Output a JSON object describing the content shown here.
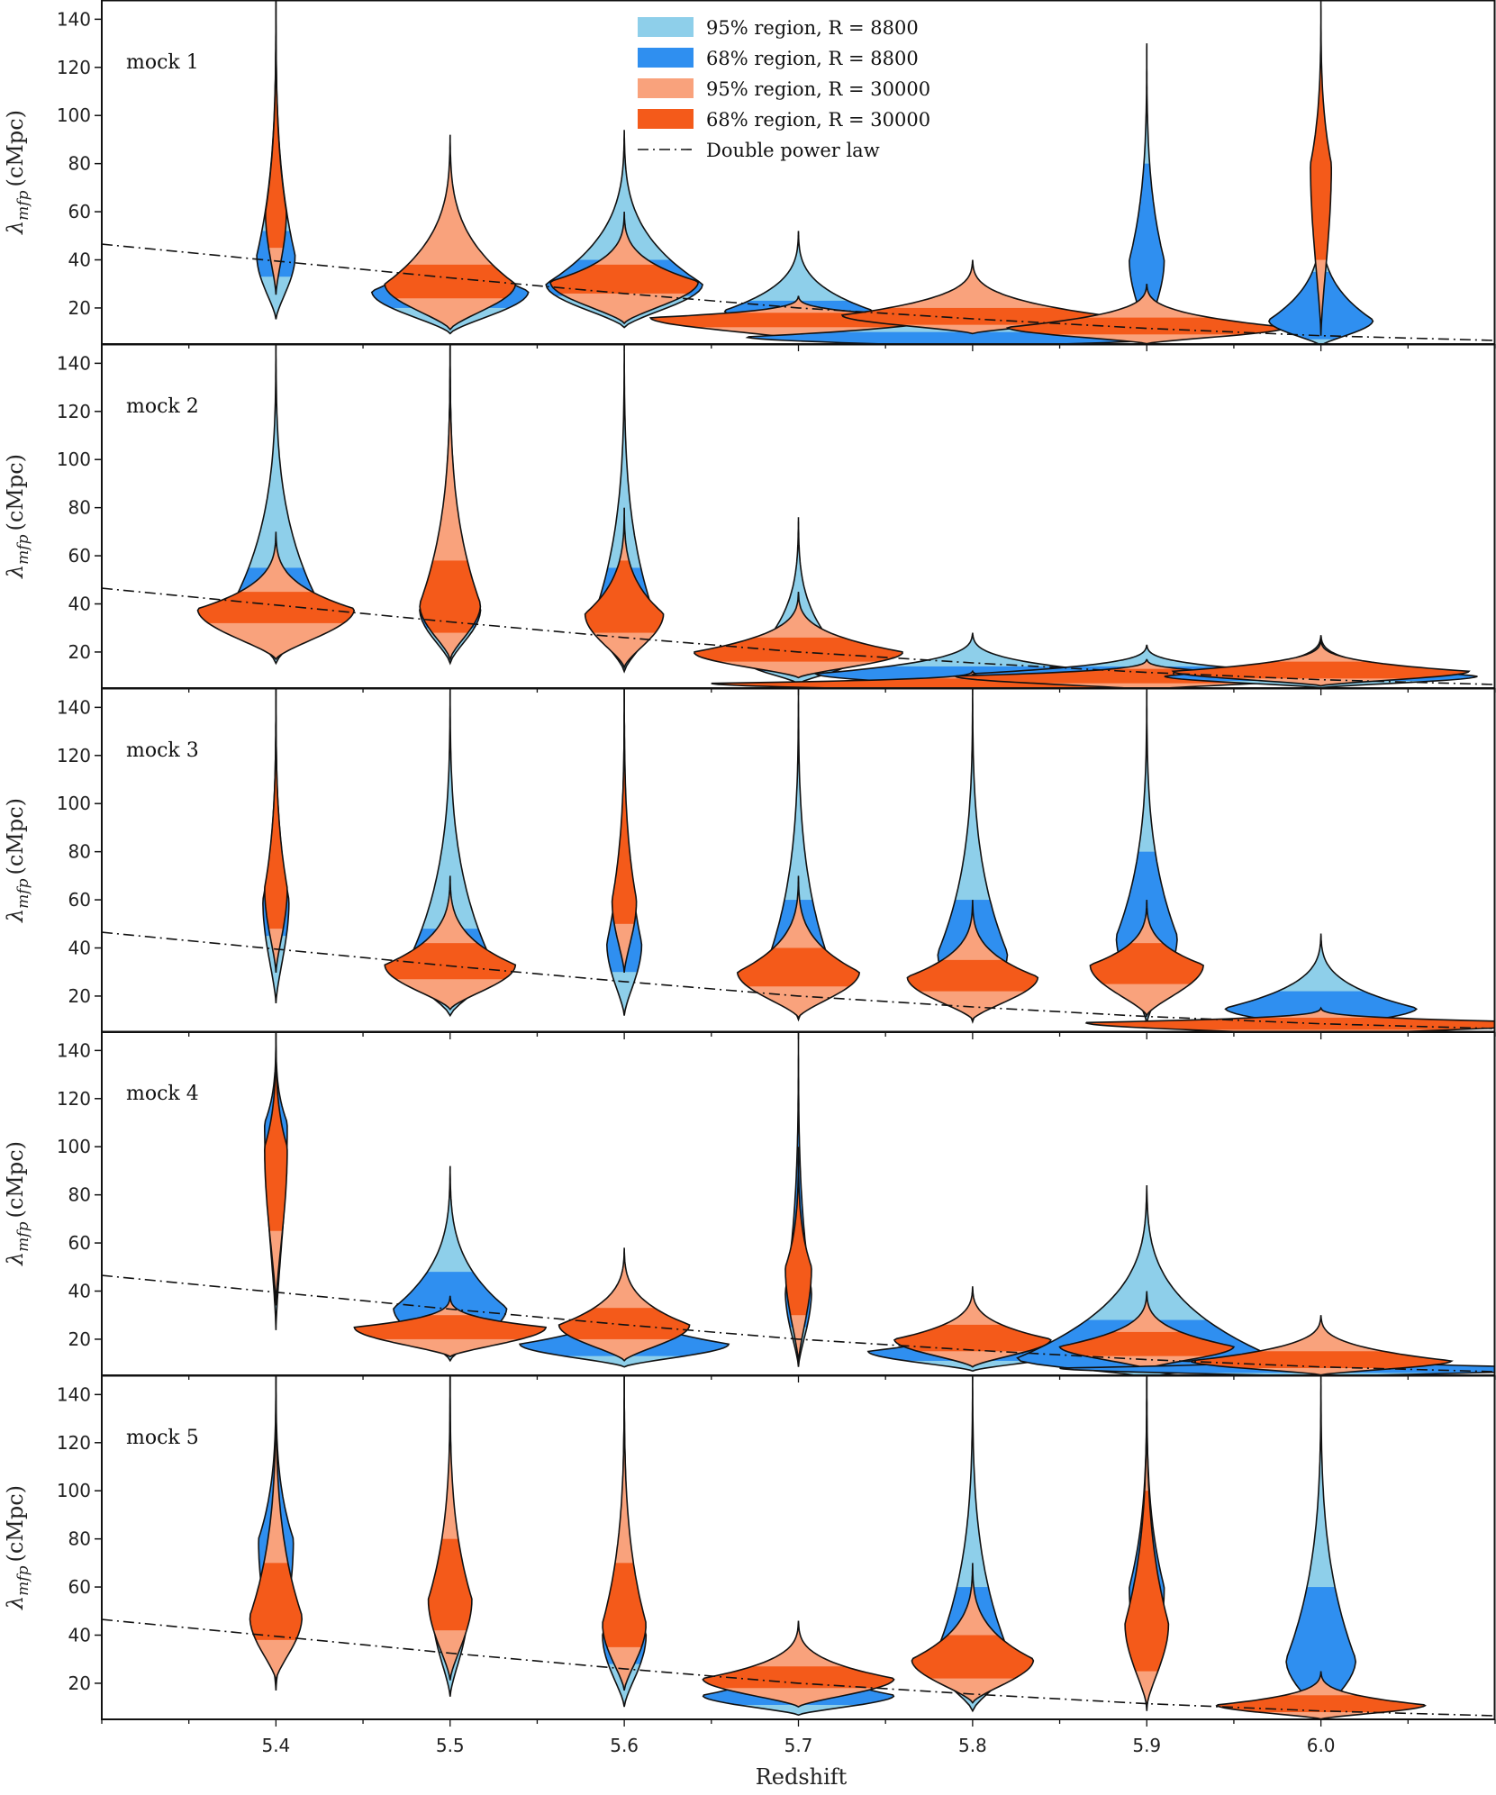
{
  "chart_data": {
    "type": "violin",
    "xlabel": "Redshift",
    "ylabel": "λmfp (cMpc)",
    "ylabel_symbol": "λ",
    "ylabel_subscript": "mfp",
    "ylabel_unit": "(cMpc)",
    "xlim": [
      5.3,
      6.1
    ],
    "ylim": [
      5,
      148
    ],
    "x_ticks": [
      "5.4",
      "5.5",
      "5.6",
      "5.7",
      "5.8",
      "5.9",
      "6.0"
    ],
    "x_tick_values": [
      5.4,
      5.5,
      5.6,
      5.7,
      5.8,
      5.9,
      6.0
    ],
    "y_ticks": [
      "20",
      "40",
      "60",
      "80",
      "100",
      "120",
      "140"
    ],
    "y_tick_values": [
      20,
      40,
      60,
      80,
      100,
      120,
      140
    ],
    "colors": {
      "r8800_95": "#8ecfea",
      "r8800_68": "#2f8ff0",
      "r30000_95": "#f9a27c",
      "r30000_68": "#f45a1a",
      "outline": "#111111"
    },
    "legend": [
      {
        "label": "95% region, R = 8800",
        "kind": "patch",
        "color": "#8ecfea"
      },
      {
        "label": "68% region, R = 8800",
        "kind": "patch",
        "color": "#2f8ff0"
      },
      {
        "label": "95% region, R = 30000",
        "kind": "patch",
        "color": "#f9a27c"
      },
      {
        "label": "68% region, R = 30000",
        "kind": "patch",
        "color": "#f45a1a"
      },
      {
        "label": "Double power law",
        "kind": "dashdot"
      }
    ],
    "reference_curve": {
      "name": "Double power law",
      "x": [
        5.3,
        5.4,
        5.5,
        5.6,
        5.7,
        5.8,
        5.9,
        6.0,
        6.1
      ],
      "y": [
        46.5,
        39.5,
        32.5,
        26.0,
        20.0,
        15.5,
        11.5,
        8.5,
        6.5
      ]
    },
    "panels": [
      {
        "label": "mock 1",
        "violins": [
          {
            "z": 5.4,
            "r8800": {
              "median": 42,
              "lo95": 18,
              "hi95": 148,
              "lo68": 33,
              "hi68": 52,
              "width": 0.022
            },
            "r30000": {
              "median": 60,
              "lo95": 30,
              "hi95": 148,
              "lo68": 45,
              "hi68": 148,
              "width": 0.012
            }
          },
          {
            "z": 5.5,
            "r8800": {
              "median": 27,
              "lo95": 11,
              "hi95": 70,
              "lo68": 20,
              "hi68": 33,
              "width": 0.09
            },
            "r30000": {
              "median": 30,
              "lo95": 13,
              "hi95": 92,
              "lo68": 24,
              "hi68": 38,
              "width": 0.075
            }
          },
          {
            "z": 5.6,
            "r8800": {
              "median": 30,
              "lo95": 14,
              "hi95": 94,
              "lo68": 25,
              "hi68": 40,
              "width": 0.09
            },
            "r30000": {
              "median": 31,
              "lo95": 16,
              "hi95": 60,
              "lo68": 26,
              "hi68": 38,
              "width": 0.085
            }
          },
          {
            "z": 5.7,
            "r8800": {
              "median": 19,
              "lo95": 12,
              "hi95": 52,
              "lo68": 15,
              "hi68": 23,
              "width": 0.085
            },
            "r30000": {
              "median": 16,
              "lo95": 8,
              "hi95": 25,
              "lo68": 12,
              "hi68": 18,
              "width": 0.17
            }
          },
          {
            "z": 5.8,
            "r8800": {
              "median": 8,
              "lo95": 4,
              "hi95": 22,
              "lo68": 5,
              "hi68": 10,
              "width": 0.26
            },
            "r30000": {
              "median": 17,
              "lo95": 11,
              "hi95": 40,
              "lo68": 13,
              "hi68": 20,
              "width": 0.15
            }
          },
          {
            "z": 5.9,
            "r8800": {
              "median": 40,
              "lo95": 8,
              "hi95": 130,
              "lo68": 20,
              "hi68": 80,
              "width": 0.02
            },
            "r30000": {
              "median": 12,
              "lo95": 6,
              "hi95": 30,
              "lo68": 9,
              "hi68": 16,
              "width": 0.16
            }
          },
          {
            "z": 6.0,
            "r8800": {
              "median": 15,
              "lo95": 5,
              "hi95": 60,
              "lo68": 7,
              "hi68": 35,
              "width": 0.06
            },
            "r30000": {
              "median": 80,
              "lo95": 10,
              "hi95": 148,
              "lo68": 40,
              "hi68": 140,
              "width": 0.012
            }
          }
        ]
      },
      {
        "label": "mock 2",
        "violins": [
          {
            "z": 5.4,
            "r8800": {
              "median": 40,
              "lo95": 18,
              "hi95": 148,
              "lo68": 32,
              "hi68": 55,
              "width": 0.05
            },
            "r30000": {
              "median": 38,
              "lo95": 20,
              "hi95": 70,
              "lo68": 32,
              "hi68": 45,
              "width": 0.09
            }
          },
          {
            "z": 5.5,
            "r8800": {
              "median": 38,
              "lo95": 18,
              "hi95": 148,
              "lo68": 30,
              "hi68": 58,
              "width": 0.035
            },
            "r30000": {
              "median": 40,
              "lo95": 20,
              "hi95": 148,
              "lo68": 28,
              "hi68": 58,
              "width": 0.035
            }
          },
          {
            "z": 5.6,
            "r8800": {
              "median": 35,
              "lo95": 14,
              "hi95": 148,
              "lo68": 26,
              "hi68": 55,
              "width": 0.035
            },
            "r30000": {
              "median": 36,
              "lo95": 16,
              "hi95": 80,
              "lo68": 28,
              "hi68": 58,
              "width": 0.045
            }
          },
          {
            "z": 5.7,
            "r8800": {
              "median": 16,
              "lo95": 8,
              "hi95": 76,
              "lo68": 12,
              "hi68": 24,
              "width": 0.06
            },
            "r30000": {
              "median": 20,
              "lo95": 11,
              "hi95": 45,
              "lo68": 16,
              "hi68": 26,
              "width": 0.12
            }
          },
          {
            "z": 5.8,
            "r8800": {
              "median": 11,
              "lo95": 6,
              "hi95": 28,
              "lo68": 8,
              "hi68": 14,
              "width": 0.18
            },
            "r30000": {
              "median": 7,
              "lo95": 4,
              "hi95": 12,
              "lo68": 5,
              "hi68": 9,
              "width": 0.3
            }
          },
          {
            "z": 5.9,
            "r8800": {
              "median": 11,
              "lo95": 6,
              "hi95": 23,
              "lo68": 8,
              "hi68": 14,
              "width": 0.2
            },
            "r30000": {
              "median": 10,
              "lo95": 5,
              "hi95": 17,
              "lo68": 7,
              "hi68": 13,
              "width": 0.22
            }
          },
          {
            "z": 6.0,
            "r8800": {
              "median": 10,
              "lo95": 6,
              "hi95": 27,
              "lo68": 8,
              "hi68": 13,
              "width": 0.18
            },
            "r30000": {
              "median": 12,
              "lo95": 7,
              "hi95": 25,
              "lo68": 9,
              "hi68": 16,
              "width": 0.17
            }
          }
        ]
      },
      {
        "label": "mock 3",
        "violins": [
          {
            "z": 5.4,
            "r8800": {
              "median": 60,
              "lo95": 20,
              "hi95": 148,
              "lo68": 45,
              "hi68": 120,
              "width": 0.015
            },
            "r30000": {
              "median": 65,
              "lo95": 35,
              "hi95": 148,
              "lo68": 48,
              "hi68": 120,
              "width": 0.013
            }
          },
          {
            "z": 5.5,
            "r8800": {
              "median": 33,
              "lo95": 14,
              "hi95": 148,
              "lo68": 25,
              "hi68": 48,
              "width": 0.05
            },
            "r30000": {
              "median": 33,
              "lo95": 17,
              "hi95": 70,
              "lo68": 27,
              "hi68": 42,
              "width": 0.075
            }
          },
          {
            "z": 5.6,
            "r8800": {
              "median": 42,
              "lo95": 14,
              "hi95": 148,
              "lo68": 30,
              "hi68": 70,
              "width": 0.02
            },
            "r30000": {
              "median": 60,
              "lo95": 35,
              "hi95": 148,
              "lo68": 50,
              "hi68": 140,
              "width": 0.014
            }
          },
          {
            "z": 5.7,
            "r8800": {
              "median": 35,
              "lo95": 12,
              "hi95": 148,
              "lo68": 24,
              "hi68": 60,
              "width": 0.035
            },
            "r30000": {
              "median": 30,
              "lo95": 13,
              "hi95": 70,
              "lo68": 24,
              "hi68": 40,
              "width": 0.07
            }
          },
          {
            "z": 5.8,
            "r8800": {
              "median": 38,
              "lo95": 11,
              "hi95": 148,
              "lo68": 25,
              "hi68": 60,
              "width": 0.04
            },
            "r30000": {
              "median": 28,
              "lo95": 12,
              "hi95": 60,
              "lo68": 22,
              "hi68": 35,
              "width": 0.075
            }
          },
          {
            "z": 5.9,
            "r8800": {
              "median": 45,
              "lo95": 10,
              "hi95": 148,
              "lo68": 30,
              "hi68": 80,
              "width": 0.035
            },
            "r30000": {
              "median": 33,
              "lo95": 14,
              "hi95": 60,
              "lo68": 25,
              "hi68": 42,
              "width": 0.065
            }
          },
          {
            "z": 6.0,
            "r8800": {
              "median": 15,
              "lo95": 7,
              "hi95": 46,
              "lo68": 10,
              "hi68": 22,
              "width": 0.11
            },
            "r30000": {
              "median": 9,
              "lo95": 4,
              "hi95": 15,
              "lo68": 6,
              "hi68": 11,
              "width": 0.27
            }
          }
        ]
      },
      {
        "label": "mock 4",
        "violins": [
          {
            "z": 5.4,
            "r8800": {
              "median": 110,
              "lo95": 28,
              "hi95": 148,
              "lo68": 70,
              "hi68": 148,
              "width": 0.013
            },
            "r30000": {
              "median": 100,
              "lo95": 40,
              "hi95": 148,
              "lo68": 65,
              "hi68": 138,
              "width": 0.013
            }
          },
          {
            "z": 5.5,
            "r8800": {
              "median": 33,
              "lo95": 13,
              "hi95": 92,
              "lo68": 25,
              "hi68": 48,
              "width": 0.065
            },
            "r30000": {
              "median": 25,
              "lo95": 15,
              "hi95": 38,
              "lo68": 20,
              "hi68": 30,
              "width": 0.11
            }
          },
          {
            "z": 5.6,
            "r8800": {
              "median": 18,
              "lo95": 10,
              "hi95": 40,
              "lo68": 13,
              "hi68": 22,
              "width": 0.12
            },
            "r30000": {
              "median": 26,
              "lo95": 13,
              "hi95": 58,
              "lo68": 20,
              "hi68": 33,
              "width": 0.075
            }
          },
          {
            "z": 5.7,
            "r8800": {
              "median": 40,
              "lo95": 10,
              "hi95": 148,
              "lo68": 25,
              "hi68": 110,
              "width": 0.015
            },
            "r30000": {
              "median": 50,
              "lo95": 12,
              "hi95": 100,
              "lo68": 30,
              "hi68": 90,
              "width": 0.015
            }
          },
          {
            "z": 5.8,
            "r8800": {
              "median": 15,
              "lo95": 8,
              "hi95": 30,
              "lo68": 11,
              "hi68": 18,
              "width": 0.12
            },
            "r30000": {
              "median": 20,
              "lo95": 10,
              "hi95": 42,
              "lo68": 15,
              "hi68": 26,
              "width": 0.09
            }
          },
          {
            "z": 5.9,
            "r8800": {
              "median": 12,
              "lo95": 5,
              "hi95": 84,
              "lo68": 8,
              "hi68": 28,
              "width": 0.15
            },
            "r30000": {
              "median": 17,
              "lo95": 9,
              "hi95": 40,
              "lo68": 13,
              "hi68": 23,
              "width": 0.1
            }
          },
          {
            "z": 6.0,
            "r8800": {
              "median": 8,
              "lo95": 5,
              "hi95": 14,
              "lo68": 6,
              "hi68": 10,
              "width": 0.3
            },
            "r30000": {
              "median": 11,
              "lo95": 6,
              "hi95": 30,
              "lo68": 8,
              "hi68": 15,
              "width": 0.15
            }
          }
        ]
      },
      {
        "label": "mock 5",
        "violins": [
          {
            "z": 5.4,
            "r8800": {
              "median": 80,
              "lo95": 20,
              "hi95": 148,
              "lo68": 40,
              "hi68": 148,
              "width": 0.02
            },
            "r30000": {
              "median": 48,
              "lo95": 25,
              "hi95": 148,
              "lo68": 38,
              "hi68": 70,
              "width": 0.03
            }
          },
          {
            "z": 5.5,
            "r8800": {
              "median": 50,
              "lo95": 17,
              "hi95": 148,
              "lo68": 40,
              "hi68": 80,
              "width": 0.02
            },
            "r30000": {
              "median": 55,
              "lo95": 25,
              "hi95": 148,
              "lo68": 42,
              "hi68": 80,
              "width": 0.025
            }
          },
          {
            "z": 5.6,
            "r8800": {
              "median": 40,
              "lo95": 12,
              "hi95": 148,
              "lo68": 28,
              "hi68": 80,
              "width": 0.025
            },
            "r30000": {
              "median": 45,
              "lo95": 20,
              "hi95": 148,
              "lo68": 35,
              "hi68": 70,
              "width": 0.025
            }
          },
          {
            "z": 5.7,
            "r8800": {
              "median": 15,
              "lo95": 8,
              "hi95": 40,
              "lo68": 11,
              "hi68": 19,
              "width": 0.11
            },
            "r30000": {
              "median": 22,
              "lo95": 12,
              "hi95": 46,
              "lo68": 18,
              "hi68": 27,
              "width": 0.11
            }
          },
          {
            "z": 5.8,
            "r8800": {
              "median": 30,
              "lo95": 10,
              "hi95": 148,
              "lo68": 20,
              "hi68": 60,
              "width": 0.045
            },
            "r30000": {
              "median": 30,
              "lo95": 14,
              "hi95": 70,
              "lo68": 22,
              "hi68": 40,
              "width": 0.07
            }
          },
          {
            "z": 5.9,
            "r8800": {
              "median": 60,
              "lo95": 10,
              "hi95": 148,
              "lo68": 30,
              "hi68": 148,
              "width": 0.02
            },
            "r30000": {
              "median": 45,
              "lo95": 12,
              "hi95": 148,
              "lo68": 25,
              "hi68": 100,
              "width": 0.025
            }
          },
          {
            "z": 6.0,
            "r8800": {
              "median": 30,
              "lo95": 6,
              "hi95": 148,
              "lo68": 15,
              "hi68": 60,
              "width": 0.04
            },
            "r30000": {
              "median": 11,
              "lo95": 6,
              "hi95": 25,
              "lo68": 8,
              "hi68": 15,
              "width": 0.12
            }
          }
        ]
      }
    ]
  }
}
